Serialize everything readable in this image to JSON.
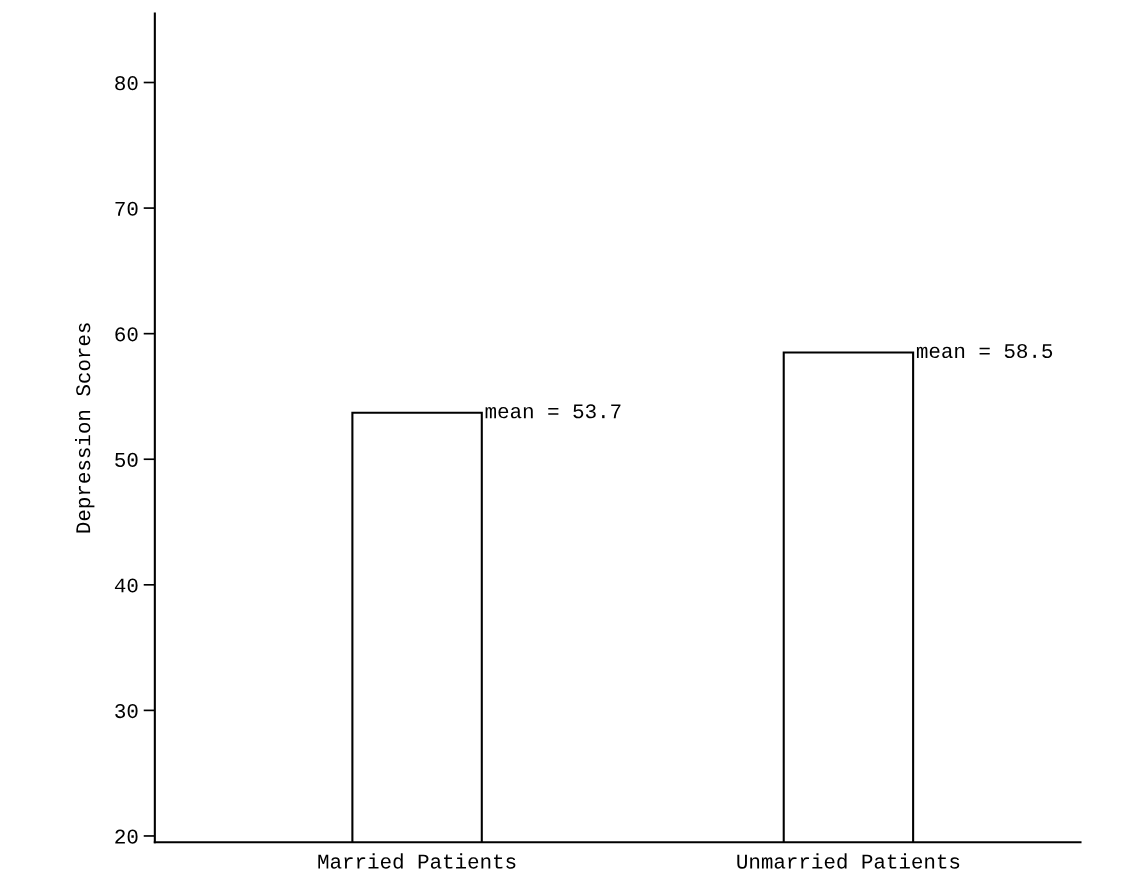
{
  "chart_data": {
    "type": "bar",
    "ylabel": "Depression Scores",
    "categories": [
      "Married Patients",
      "Unmarried Patients"
    ],
    "values": [
      53.7,
      58.5
    ],
    "annotations": [
      "mean = 53.7",
      "mean = 58.5"
    ],
    "color": "#ffffff",
    "ylim": [
      19.5,
      85.5
    ],
    "yticks": [
      20,
      30,
      40,
      50,
      60,
      70,
      80
    ],
    "grid": false,
    "legend": false
  }
}
